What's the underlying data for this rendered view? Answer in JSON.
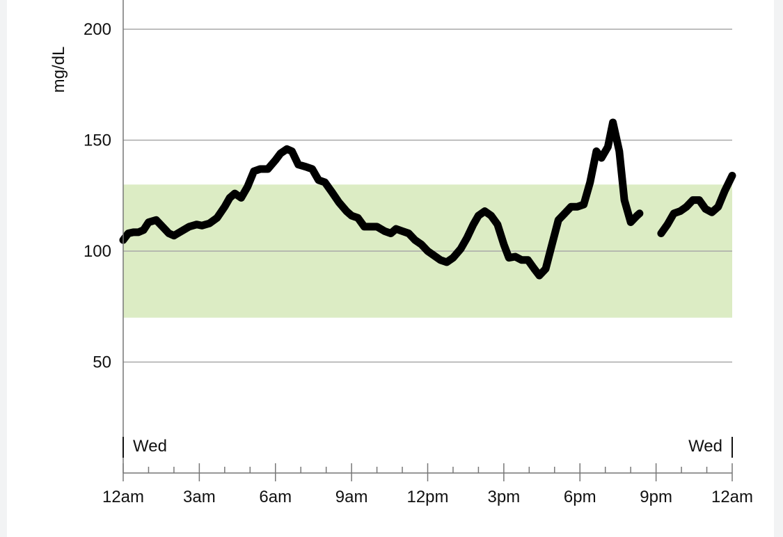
{
  "chart_data": {
    "type": "line",
    "ylabel": "mg/dL",
    "ylim": [
      0,
      212
    ],
    "yticks": [
      50,
      100,
      150,
      200
    ],
    "y_tick_labels": [
      "50",
      "100",
      "150",
      "200"
    ],
    "target_range": [
      70,
      130
    ],
    "x_range_hours": [
      0,
      24
    ],
    "x_tick_labels": [
      "12am",
      "3am",
      "6am",
      "9am",
      "12pm",
      "3pm",
      "6pm",
      "9pm",
      "12am"
    ],
    "day_markers": {
      "start": "Wed",
      "end": "Wed"
    },
    "grid": true,
    "colors": {
      "line": "#000000",
      "target_band": "#dcecc4",
      "grid": "#a8a8a8"
    },
    "series": [
      {
        "segments": [
          [
            [
              0.0,
              105
            ],
            [
              0.2,
              108
            ],
            [
              0.4,
              108.5
            ],
            [
              0.6,
              108.5
            ],
            [
              0.8,
              109.5
            ],
            [
              1.0,
              113
            ],
            [
              1.3,
              114
            ],
            [
              1.55,
              111
            ],
            [
              1.8,
              108
            ],
            [
              2.0,
              107
            ],
            [
              2.3,
              109
            ],
            [
              2.6,
              111
            ],
            [
              2.9,
              112
            ],
            [
              3.1,
              111.5
            ],
            [
              3.4,
              112.5
            ],
            [
              3.7,
              115
            ],
            [
              4.0,
              120
            ],
            [
              4.2,
              124
            ],
            [
              4.4,
              126
            ],
            [
              4.65,
              124
            ],
            [
              4.9,
              129
            ],
            [
              5.15,
              136
            ],
            [
              5.4,
              137
            ],
            [
              5.7,
              137
            ],
            [
              6.0,
              141
            ],
            [
              6.2,
              144
            ],
            [
              6.45,
              146
            ],
            [
              6.65,
              145
            ],
            [
              6.9,
              139
            ],
            [
              7.2,
              138
            ],
            [
              7.45,
              137
            ],
            [
              7.7,
              132
            ],
            [
              7.95,
              131
            ],
            [
              8.2,
              127
            ],
            [
              8.5,
              122
            ],
            [
              8.8,
              118
            ],
            [
              9.0,
              116
            ],
            [
              9.25,
              115
            ],
            [
              9.5,
              111
            ],
            [
              9.75,
              111
            ],
            [
              10.0,
              111
            ],
            [
              10.3,
              109
            ],
            [
              10.55,
              108
            ],
            [
              10.75,
              110
            ],
            [
              11.0,
              109
            ],
            [
              11.25,
              108
            ],
            [
              11.5,
              105
            ],
            [
              11.75,
              103
            ],
            [
              12.0,
              100
            ],
            [
              12.25,
              98
            ],
            [
              12.5,
              96
            ],
            [
              12.75,
              95
            ],
            [
              13.0,
              97
            ],
            [
              13.3,
              101
            ],
            [
              13.55,
              106
            ],
            [
              13.8,
              112
            ],
            [
              14.0,
              116
            ],
            [
              14.25,
              118
            ],
            [
              14.5,
              116
            ],
            [
              14.75,
              112
            ],
            [
              15.0,
              103
            ],
            [
              15.2,
              97
            ],
            [
              15.45,
              97.5
            ],
            [
              15.7,
              96
            ],
            [
              15.95,
              96
            ],
            [
              16.2,
              92
            ],
            [
              16.4,
              89
            ],
            [
              16.65,
              92
            ],
            [
              16.9,
              103
            ],
            [
              17.15,
              114
            ],
            [
              17.4,
              117
            ],
            [
              17.65,
              120
            ],
            [
              17.9,
              120
            ],
            [
              18.15,
              121
            ],
            [
              18.4,
              131
            ],
            [
              18.65,
              145
            ],
            [
              18.85,
              142
            ],
            [
              19.1,
              147
            ],
            [
              19.3,
              158
            ],
            [
              19.55,
              145
            ],
            [
              19.75,
              123
            ],
            [
              20.0,
              113
            ],
            [
              20.25,
              116
            ],
            [
              20.35,
              117
            ]
          ],
          [
            [
              21.2,
              108
            ],
            [
              21.45,
              112
            ],
            [
              21.7,
              117
            ],
            [
              21.95,
              118
            ],
            [
              22.2,
              120
            ],
            [
              22.45,
              123
            ],
            [
              22.7,
              123
            ],
            [
              22.95,
              119
            ],
            [
              23.2,
              117.5
            ],
            [
              23.45,
              120
            ],
            [
              23.7,
              127
            ],
            [
              24.0,
              134
            ]
          ]
        ]
      }
    ]
  }
}
